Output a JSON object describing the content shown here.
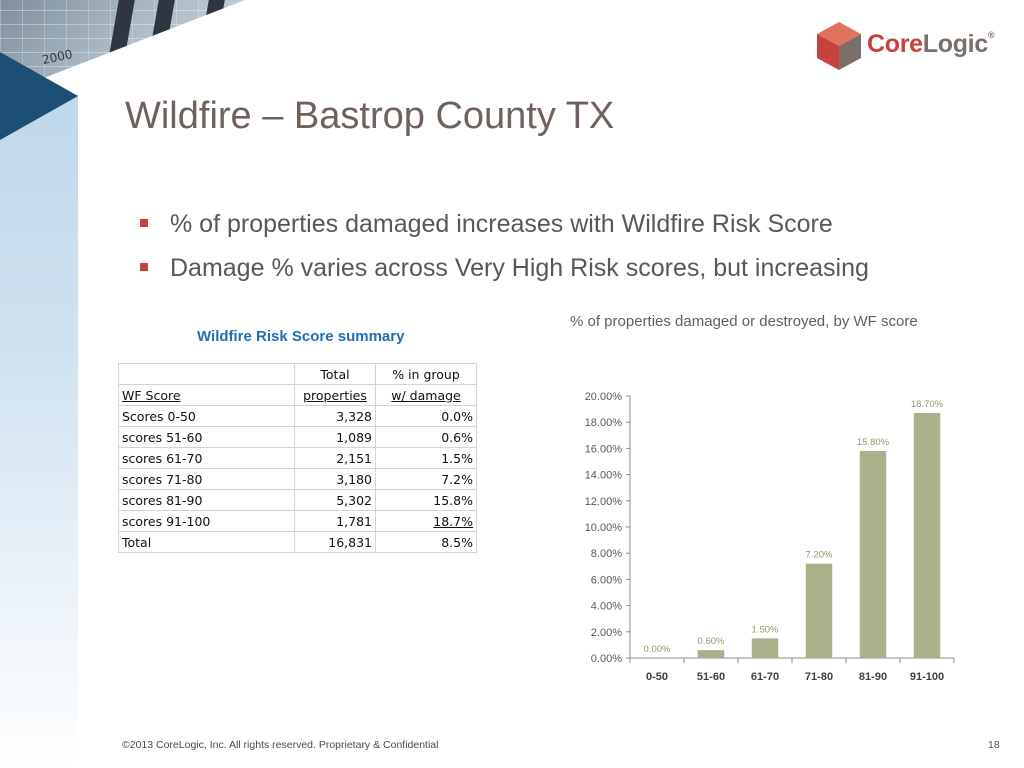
{
  "slide": {
    "title": "Wildfire – Bastrop County TX",
    "bullets": [
      "% of properties damaged increases with Wildfire Risk Score",
      "Damage % varies across Very High Risk scores, but increasing"
    ],
    "footer": "©2013 CoreLogic, Inc. All rights reserved. Proprietary & Confidential",
    "page_number": "18"
  },
  "logo": {
    "brand_first": "Core",
    "brand_second": "Logic",
    "registered": "®",
    "colors": [
      "#c8413b",
      "#7b6f6a",
      "#e0735c",
      "#9a8c86"
    ]
  },
  "photo": {
    "label": "2000"
  },
  "table": {
    "title": "Wildfire Risk Score summary",
    "header_top": [
      "",
      "Total",
      "% in group"
    ],
    "header_bottom": [
      "WF Score",
      "properties",
      "w/ damage"
    ],
    "rows": [
      [
        "Scores 0-50",
        "3,328",
        "0.0%"
      ],
      [
        "scores 51-60",
        "1,089",
        "0.6%"
      ],
      [
        "scores 61-70",
        "2,151",
        "1.5%"
      ],
      [
        "scores 71-80",
        "3,180",
        "7.2%"
      ],
      [
        "scores 81-90",
        "5,302",
        "15.8%"
      ],
      [
        "scores 91-100",
        "1,781",
        "18.7%"
      ],
      [
        "Total",
        "16,831",
        "8.5%"
      ]
    ]
  },
  "chart_data": {
    "type": "bar",
    "title": "% of properties damaged or destroyed, by WF score",
    "categories": [
      "0-50",
      "51-60",
      "61-70",
      "71-80",
      "81-90",
      "91-100"
    ],
    "values": [
      0.0,
      0.6,
      1.5,
      7.2,
      15.8,
      18.7
    ],
    "data_labels": [
      "0.00%",
      "0.60%",
      "1.50%",
      "7.20%",
      "15.80%",
      "18.70%"
    ],
    "y_ticks": [
      "0.00%",
      "2.00%",
      "4.00%",
      "6.00%",
      "8.00%",
      "10.00%",
      "12.00%",
      "14.00%",
      "16.00%",
      "18.00%",
      "20.00%"
    ],
    "ylim": [
      0,
      20
    ],
    "grid": false,
    "legend": "none",
    "bar_color": "#a9b18b"
  }
}
